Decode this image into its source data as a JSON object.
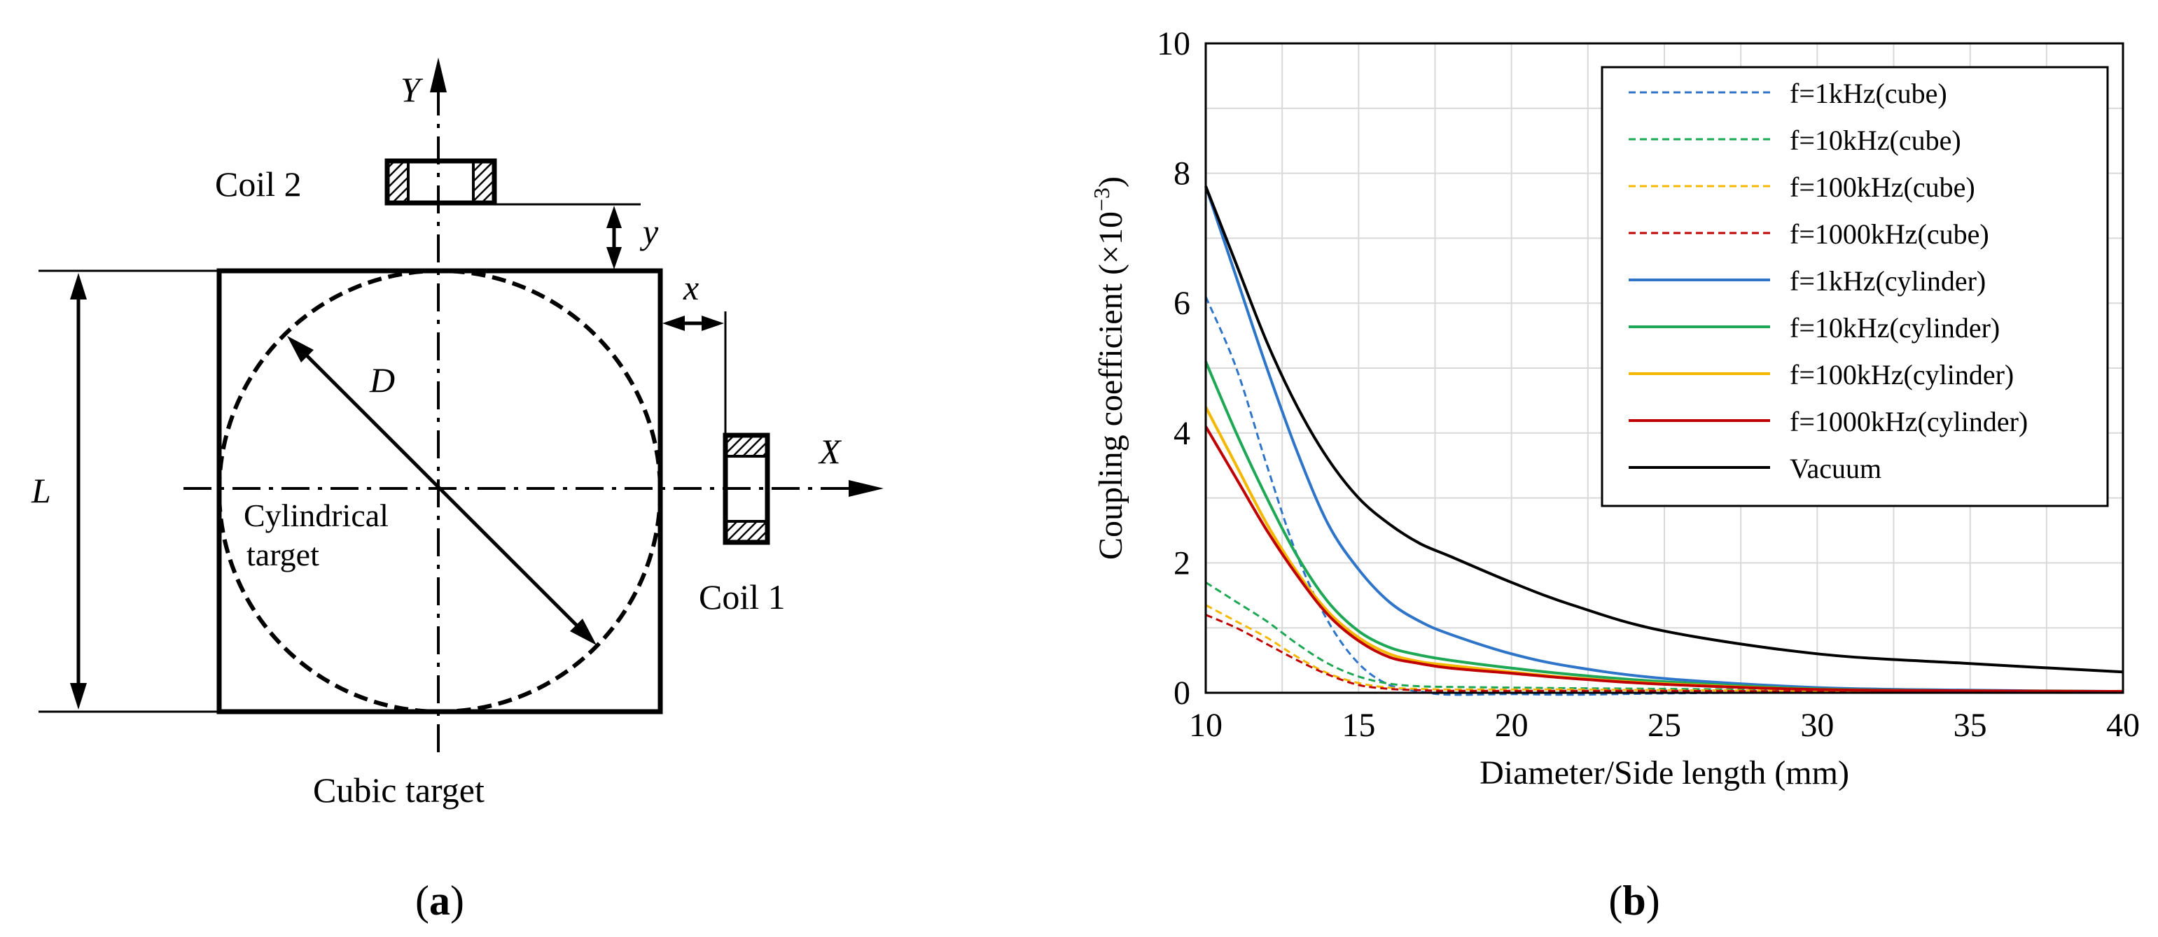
{
  "panel_a": {
    "label_open": "(",
    "label_letter": "a",
    "label_close": ")",
    "axis_y_label": "Y",
    "axis_x_label": "X",
    "coil2_label": "Coil 2",
    "coil1_label": "Coil 1",
    "dim_y_label": "y",
    "dim_x_label": "x",
    "dim_D_label": "D",
    "dim_L_label": "L",
    "cyl_label_line1": "Cylindrical",
    "cyl_label_line2": "target",
    "cube_label": "Cubic target"
  },
  "panel_b": {
    "label_open": "(",
    "label_letter": "b",
    "label_close": ")"
  },
  "chart_data": {
    "type": "line",
    "title": "",
    "xlabel": "Diameter/Side length (mm)",
    "ylabel_main": "Coupling coefficient (×10",
    "ylabel_exp": "−3",
    "ylabel_close": ")",
    "xlim": [
      10,
      40
    ],
    "ylim": [
      0,
      10
    ],
    "xticks": [
      10,
      15,
      20,
      25,
      30,
      35,
      40
    ],
    "yticks": [
      0,
      2,
      4,
      6,
      8,
      10
    ],
    "grid": true,
    "legend_position": "top-right",
    "x": [
      10,
      11,
      12,
      13,
      14,
      15,
      16,
      17,
      18,
      20,
      22,
      25,
      30,
      35,
      40
    ],
    "series": [
      {
        "name": "f=1kHz(cube)",
        "color": "#2E75C9",
        "dash": true,
        "values": [
          6.1,
          5.0,
          3.5,
          2.1,
          1.1,
          0.45,
          0.12,
          0.02,
          -0.03,
          -0.02,
          -0.03,
          -0.01,
          0.01,
          0.01,
          0.0
        ]
      },
      {
        "name": "f=10kHz(cube)",
        "color": "#1EA855",
        "dash": true,
        "values": [
          1.7,
          1.4,
          1.1,
          0.75,
          0.45,
          0.25,
          0.14,
          0.1,
          0.09,
          0.08,
          0.07,
          0.06,
          0.04,
          0.03,
          0.02
        ]
      },
      {
        "name": "f=100kHz(cube)",
        "color": "#F5B800",
        "dash": true,
        "values": [
          1.35,
          1.1,
          0.85,
          0.55,
          0.3,
          0.15,
          0.08,
          0.06,
          0.05,
          0.05,
          0.05,
          0.04,
          0.03,
          0.02,
          0.01
        ]
      },
      {
        "name": "f=1000kHz(cube)",
        "color": "#C00000",
        "dash": true,
        "values": [
          1.2,
          1.0,
          0.75,
          0.5,
          0.28,
          0.12,
          0.06,
          0.04,
          0.03,
          0.03,
          0.03,
          0.03,
          0.02,
          0.01,
          0.01
        ]
      },
      {
        "name": "f=1kHz(cylinder)",
        "color": "#2E75C9",
        "dash": false,
        "values": [
          7.8,
          6.4,
          5.0,
          3.7,
          2.6,
          1.9,
          1.4,
          1.1,
          0.9,
          0.6,
          0.4,
          0.22,
          0.08,
          0.04,
          0.02
        ]
      },
      {
        "name": "f=10kHz(cylinder)",
        "color": "#1EA855",
        "dash": false,
        "values": [
          5.1,
          4.0,
          3.0,
          2.1,
          1.4,
          0.95,
          0.7,
          0.58,
          0.5,
          0.38,
          0.28,
          0.17,
          0.06,
          0.03,
          0.02
        ]
      },
      {
        "name": "f=100kHz(cylinder)",
        "color": "#F5B800",
        "dash": false,
        "values": [
          4.4,
          3.5,
          2.6,
          1.85,
          1.25,
          0.85,
          0.6,
          0.48,
          0.42,
          0.32,
          0.23,
          0.14,
          0.05,
          0.03,
          0.02
        ]
      },
      {
        "name": "f=1000kHz(cylinder)",
        "color": "#C00000",
        "dash": false,
        "values": [
          4.1,
          3.3,
          2.5,
          1.8,
          1.2,
          0.8,
          0.55,
          0.45,
          0.38,
          0.3,
          0.22,
          0.13,
          0.05,
          0.03,
          0.02
        ]
      },
      {
        "name": "Vacuum",
        "color": "#000000",
        "dash": false,
        "values": [
          7.8,
          6.6,
          5.4,
          4.4,
          3.6,
          3.0,
          2.6,
          2.3,
          2.1,
          1.7,
          1.35,
          0.95,
          0.6,
          0.45,
          0.32
        ]
      }
    ]
  }
}
